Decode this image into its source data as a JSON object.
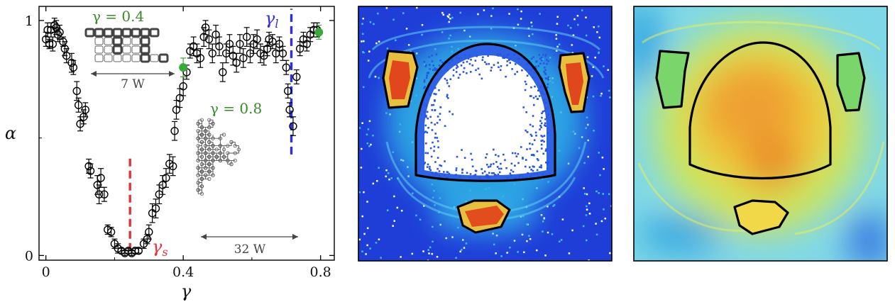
{
  "chart_data": [
    {
      "type": "scatter",
      "xlabel": "γ",
      "ylabel": "α",
      "xlim": [
        -0.02,
        0.84
      ],
      "ylim": [
        -0.02,
        1.06
      ],
      "x_ticks": [
        0,
        0.4,
        0.8
      ],
      "x_tick_labels": [
        "0",
        "0.4",
        "0.8"
      ],
      "y_ticks": [
        0,
        1
      ],
      "y_tick_labels": [
        "0",
        "1"
      ],
      "grid": false,
      "series": [
        {
          "marker": "open-circle",
          "color": "#000000",
          "points": [
            [
              0.0,
              0.92,
              0.03
            ],
            [
              0.005,
              0.96,
              0.03
            ],
            [
              0.01,
              0.9,
              0.02
            ],
            [
              0.015,
              0.96,
              0.03
            ],
            [
              0.02,
              0.9,
              0.03
            ],
            [
              0.025,
              0.98,
              0.03
            ],
            [
              0.03,
              0.97,
              0.03
            ],
            [
              0.035,
              0.94,
              0.03
            ],
            [
              0.04,
              0.95,
              0.03
            ],
            [
              0.05,
              0.91,
              0.02
            ],
            [
              0.055,
              0.88,
              0.03
            ],
            [
              0.06,
              0.85,
              0.03
            ],
            [
              0.075,
              0.82,
              0.04
            ],
            [
              0.08,
              0.8,
              0.03
            ],
            [
              0.09,
              0.7,
              0.04
            ],
            [
              0.095,
              0.64,
              0.03
            ],
            [
              0.1,
              0.56,
              0.03
            ],
            [
              0.11,
              0.59,
              0.03
            ],
            [
              0.115,
              0.62,
              0.03
            ],
            [
              0.125,
              0.38,
              0.03
            ],
            [
              0.13,
              0.36,
              0.03
            ],
            [
              0.15,
              0.3,
              0.04
            ],
            [
              0.155,
              0.26,
              0.04
            ],
            [
              0.16,
              0.33,
              0.04
            ],
            [
              0.17,
              0.26,
              0.03
            ],
            [
              0.18,
              0.11,
              0.02
            ],
            [
              0.19,
              0.1,
              0.02
            ],
            [
              0.2,
              0.05,
              0.02
            ],
            [
              0.21,
              0.03,
              0.02
            ],
            [
              0.22,
              0.02,
              0.01
            ],
            [
              0.23,
              0.01,
              0.01
            ],
            [
              0.24,
              0.02,
              0.01
            ],
            [
              0.25,
              0.01,
              0.01
            ],
            [
              0.26,
              0.02,
              0.01
            ],
            [
              0.27,
              0.02,
              0.01
            ],
            [
              0.285,
              0.05,
              0.02
            ],
            [
              0.295,
              0.07,
              0.02
            ],
            [
              0.3,
              0.1,
              0.03
            ],
            [
              0.31,
              0.18,
              0.04
            ],
            [
              0.32,
              0.2,
              0.04
            ],
            [
              0.33,
              0.26,
              0.04
            ],
            [
              0.34,
              0.3,
              0.04
            ],
            [
              0.35,
              0.33,
              0.04
            ],
            [
              0.36,
              0.39,
              0.04
            ],
            [
              0.37,
              0.38,
              0.04
            ],
            [
              0.375,
              0.53,
              0.04
            ],
            [
              0.38,
              0.62,
              0.04
            ],
            [
              0.39,
              0.67,
              0.04
            ],
            [
              0.4,
              0.72,
              0.04
            ],
            [
              0.41,
              0.78,
              0.03
            ],
            [
              0.42,
              0.87,
              0.03
            ],
            [
              0.43,
              0.89,
              0.04
            ],
            [
              0.44,
              0.86,
              0.04
            ],
            [
              0.45,
              0.84,
              0.04
            ],
            [
              0.46,
              0.93,
              0.04
            ],
            [
              0.465,
              0.97,
              0.03
            ],
            [
              0.475,
              0.92,
              0.04
            ],
            [
              0.485,
              0.86,
              0.04
            ],
            [
              0.495,
              0.94,
              0.04
            ],
            [
              0.505,
              0.89,
              0.04
            ],
            [
              0.515,
              0.78,
              0.04
            ],
            [
              0.525,
              0.86,
              0.04
            ],
            [
              0.535,
              0.9,
              0.04
            ],
            [
              0.545,
              0.85,
              0.04
            ],
            [
              0.555,
              0.82,
              0.04
            ],
            [
              0.565,
              0.9,
              0.04
            ],
            [
              0.575,
              0.84,
              0.04
            ],
            [
              0.585,
              0.93,
              0.04
            ],
            [
              0.595,
              0.86,
              0.04
            ],
            [
              0.605,
              0.9,
              0.04
            ],
            [
              0.615,
              0.92,
              0.04
            ],
            [
              0.625,
              0.86,
              0.04
            ],
            [
              0.635,
              0.85,
              0.04
            ],
            [
              0.645,
              0.88,
              0.03
            ],
            [
              0.65,
              0.92,
              0.03
            ],
            [
              0.66,
              0.91,
              0.03
            ],
            [
              0.67,
              0.86,
              0.04
            ],
            [
              0.68,
              0.9,
              0.03
            ],
            [
              0.69,
              0.86,
              0.03
            ],
            [
              0.7,
              0.8,
              0.03
            ],
            [
              0.705,
              0.7,
              0.03
            ],
            [
              0.71,
              0.62,
              0.03
            ],
            [
              0.72,
              0.55,
              0.04
            ],
            [
              0.73,
              0.76,
              0.03
            ],
            [
              0.74,
              0.88,
              0.03
            ],
            [
              0.75,
              0.92,
              0.03
            ],
            [
              0.76,
              0.9,
              0.03
            ],
            [
              0.77,
              0.94,
              0.03
            ],
            [
              0.78,
              0.96,
              0.03
            ],
            [
              0.79,
              0.96,
              0.03
            ]
          ]
        },
        {
          "marker": "filled-circle",
          "color": "#3aa83a",
          "points": [
            [
              0.4,
              0.8,
              0.04
            ],
            [
              0.795,
              0.95,
              0.03
            ]
          ]
        }
      ],
      "annotations": [
        {
          "label": "γs",
          "x": 0.245,
          "y_range": [
            0.02,
            0.42
          ],
          "color": "#e0343a",
          "style": "dashed"
        },
        {
          "label": "γl",
          "x": 0.715,
          "y_range": [
            0.43,
            1.05
          ],
          "color": "#2f2fe0",
          "style": "dashed"
        }
      ],
      "insets": [
        {
          "label": "γ = 0.4",
          "color": "#3a8a2a",
          "scale": "7 W"
        },
        {
          "label": "γ = 0.8",
          "color": "#3a8a2a",
          "scale": "32 W"
        }
      ]
    },
    {
      "type": "heatmap",
      "colormap": "jet",
      "description_colors": [
        "#1e3cd8",
        "#3ac8e8",
        "#f0e040",
        "#e03018"
      ],
      "contours": [
        "dome",
        "left-island",
        "right-island",
        "bottom-island"
      ],
      "background_region": "white-void-in-dome"
    },
    {
      "type": "heatmap",
      "colormap": "jet",
      "description_colors": [
        "#3ac8e8",
        "#a0e870",
        "#f0c030",
        "#e87020"
      ],
      "contours": [
        "dome",
        "left-island",
        "right-island",
        "bottom-island"
      ]
    }
  ]
}
